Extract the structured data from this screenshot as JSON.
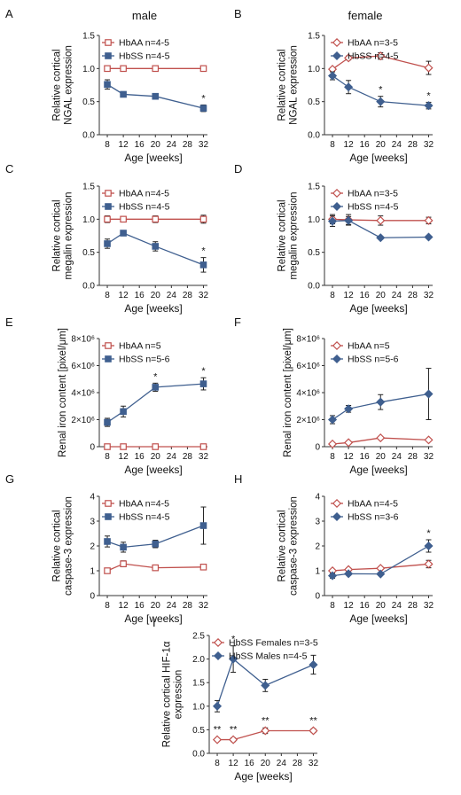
{
  "header": {
    "left": "male",
    "right": "female"
  },
  "chart_data": [
    {
      "id": "A",
      "type": "line",
      "sex": "male",
      "ylabel": [
        "Relative cortical",
        "NGAL expression"
      ],
      "xlabel": "Age [weeks]",
      "x": [
        8,
        12,
        20,
        32
      ],
      "xticks": [
        "8",
        "12",
        "16",
        "20",
        "24",
        "28",
        "32"
      ],
      "xlim": [
        6,
        33
      ],
      "ylim": [
        0,
        1.5
      ],
      "yticks": [
        "0.0",
        "0.5",
        "1.0",
        "1.5"
      ],
      "legend_position": "top-left",
      "series": [
        {
          "name": "HbAA n=4-5",
          "marker": "open-square",
          "color": "#c0504d",
          "values": [
            1.0,
            1.0,
            1.0,
            1.0
          ],
          "errors": [
            0,
            0,
            0,
            0
          ]
        },
        {
          "name": "HbSS n=4-5",
          "marker": "filled-square",
          "color": "#3f5f8f",
          "values": [
            0.76,
            0.61,
            0.58,
            0.4
          ],
          "errors": [
            0.07,
            0.02,
            0.03,
            0.05
          ]
        }
      ],
      "annotations": [
        {
          "x": 32,
          "text": "*"
        }
      ]
    },
    {
      "id": "B",
      "type": "line",
      "sex": "female",
      "ylabel": [
        "Relative cortical",
        "NGAL expression"
      ],
      "xlabel": "Age [weeks]",
      "x": [
        8,
        12,
        20,
        32
      ],
      "xticks": [
        "8",
        "12",
        "16",
        "20",
        "24",
        "28",
        "32"
      ],
      "xlim": [
        6,
        33
      ],
      "ylim": [
        0,
        1.5
      ],
      "yticks": [
        "0.0",
        "0.5",
        "1.0",
        "1.5"
      ],
      "legend_position": "top-right",
      "series": [
        {
          "name": "HbAA n=3-5",
          "marker": "open-diamond",
          "color": "#c0504d",
          "values": [
            0.99,
            1.16,
            1.19,
            1.01
          ],
          "errors": [
            0.02,
            0.03,
            0.05,
            0.1
          ]
        },
        {
          "name": "HbSS n=4-5",
          "marker": "filled-diamond",
          "color": "#3f5f8f",
          "values": [
            0.89,
            0.72,
            0.5,
            0.44
          ],
          "errors": [
            0.06,
            0.1,
            0.08,
            0.05
          ]
        }
      ],
      "annotations": [
        {
          "x": 20,
          "text": "*"
        },
        {
          "x": 32,
          "text": "*"
        }
      ]
    },
    {
      "id": "C",
      "type": "line",
      "sex": "male",
      "ylabel": [
        "Relative cortical",
        "megalin expression"
      ],
      "xlabel": "Age [weeks]",
      "x": [
        8,
        12,
        20,
        32
      ],
      "xticks": [
        "8",
        "12",
        "16",
        "20",
        "24",
        "28",
        "32"
      ],
      "xlim": [
        6,
        33
      ],
      "ylim": [
        0,
        1.5
      ],
      "yticks": [
        "0.0",
        "0.5",
        "1.0",
        "1.5"
      ],
      "legend_position": "top-left",
      "series": [
        {
          "name": "HbAA n=4-5",
          "marker": "open-square",
          "color": "#c0504d",
          "values": [
            1.0,
            1.0,
            1.0,
            1.0
          ],
          "errors": [
            0.05,
            0.04,
            0.05,
            0.06
          ]
        },
        {
          "name": "HbSS n=4-5",
          "marker": "filled-square",
          "color": "#3f5f8f",
          "values": [
            0.63,
            0.79,
            0.59,
            0.31
          ],
          "errors": [
            0.07,
            0.04,
            0.07,
            0.11
          ]
        }
      ],
      "annotations": [
        {
          "x": 32,
          "text": "*"
        }
      ]
    },
    {
      "id": "D",
      "type": "line",
      "sex": "female",
      "ylabel": [
        "Relative cortical",
        "megalin expression"
      ],
      "xlabel": "Age [weeks]",
      "x": [
        8,
        12,
        20,
        32
      ],
      "xticks": [
        "8",
        "12",
        "16",
        "20",
        "24",
        "28",
        "32"
      ],
      "xlim": [
        6,
        33
      ],
      "ylim": [
        0,
        1.5
      ],
      "yticks": [
        "0.0",
        "0.5",
        "1.0",
        "1.5"
      ],
      "legend_position": "top-right",
      "series": [
        {
          "name": "HbAA n=3-5",
          "marker": "open-diamond",
          "color": "#c0504d",
          "values": [
            1.0,
            0.99,
            0.98,
            0.98
          ],
          "errors": [
            0.07,
            0.08,
            0.07,
            0.05
          ]
        },
        {
          "name": "HbSS n=4-5",
          "marker": "filled-diamond",
          "color": "#3f5f8f",
          "values": [
            0.97,
            0.98,
            0.72,
            0.73
          ],
          "errors": [
            0.08,
            0.06,
            0.02,
            0.02
          ]
        }
      ],
      "annotations": []
    },
    {
      "id": "E",
      "type": "line",
      "sex": "male",
      "ylabel": [
        "Renal iron content [pixel/μm]"
      ],
      "xlabel": "Age [weeks]",
      "x": [
        8,
        12,
        20,
        32
      ],
      "xticks": [
        "8",
        "12",
        "16",
        "20",
        "24",
        "28",
        "32"
      ],
      "xlim": [
        6,
        33
      ],
      "ylim": [
        0,
        8000000
      ],
      "yticks": [
        "0",
        "2×10⁶",
        "4×10⁶",
        "6×10⁶",
        "8×10⁶"
      ],
      "legend_position": "top-left",
      "series": [
        {
          "name": "HbAA n=5",
          "marker": "open-square",
          "color": "#c0504d",
          "values": [
            0,
            0,
            0,
            0
          ],
          "errors": [
            0,
            0,
            0,
            0
          ]
        },
        {
          "name": "HbSS n=5-6",
          "marker": "filled-square",
          "color": "#3f5f8f",
          "values": [
            1800000,
            2600000,
            4400000,
            4650000
          ],
          "errors": [
            300000,
            400000,
            300000,
            450000
          ]
        }
      ],
      "annotations": [
        {
          "x": 20,
          "text": "*"
        },
        {
          "x": 32,
          "text": "*"
        }
      ]
    },
    {
      "id": "F",
      "type": "line",
      "sex": "female",
      "ylabel": [
        "Renal iron content [pixel/μm]"
      ],
      "xlabel": "Age [weeks]",
      "x": [
        8,
        12,
        20,
        32
      ],
      "xticks": [
        "8",
        "12",
        "16",
        "20",
        "24",
        "28",
        "32"
      ],
      "xlim": [
        6,
        33
      ],
      "ylim": [
        0,
        8000000
      ],
      "yticks": [
        "0",
        "2×10⁶",
        "4×10⁶",
        "6×10⁶",
        "8×10⁶"
      ],
      "legend_position": "top-right",
      "series": [
        {
          "name": "HbAA n=5",
          "marker": "open-diamond",
          "color": "#c0504d",
          "values": [
            200000,
            300000,
            650000,
            500000
          ],
          "errors": [
            0,
            0,
            0,
            0
          ]
        },
        {
          "name": "HbSS n=5-6",
          "marker": "filled-diamond",
          "color": "#3f5f8f",
          "values": [
            2000000,
            2800000,
            3300000,
            3900000
          ],
          "errors": [
            300000,
            250000,
            550000,
            1900000
          ]
        }
      ],
      "annotations": []
    },
    {
      "id": "G",
      "type": "line",
      "sex": "male",
      "ylabel": [
        "Relative cortical",
        "caspase-3 expression"
      ],
      "xlabel": "Age [weeks]",
      "x": [
        8,
        12,
        20,
        32
      ],
      "xticks": [
        "8",
        "12",
        "16",
        "20",
        "24",
        "28",
        "32"
      ],
      "xlim": [
        6,
        33
      ],
      "ylim": [
        0,
        4
      ],
      "yticks": [
        "0",
        "1",
        "2",
        "3",
        "4"
      ],
      "legend_position": "top-left",
      "series": [
        {
          "name": "HbAA n=4-5",
          "marker": "open-square",
          "color": "#c0504d",
          "values": [
            1.0,
            1.28,
            1.12,
            1.15
          ],
          "errors": [
            0,
            0.12,
            0.05,
            0.04
          ]
        },
        {
          "name": "HbSS n=4-5",
          "marker": "filled-square",
          "color": "#3f5f8f",
          "values": [
            2.18,
            1.95,
            2.08,
            2.82
          ],
          "errors": [
            0.22,
            0.2,
            0.15,
            0.75
          ]
        }
      ],
      "annotations": []
    },
    {
      "id": "H",
      "type": "line",
      "sex": "female",
      "ylabel": [
        "Relative cortical",
        "caspase-3 expression"
      ],
      "xlabel": "Age [weeks]",
      "x": [
        8,
        12,
        20,
        32
      ],
      "xticks": [
        "8",
        "12",
        "16",
        "20",
        "24",
        "28",
        "32"
      ],
      "xlim": [
        6,
        33
      ],
      "ylim": [
        0,
        4
      ],
      "yticks": [
        "0",
        "1",
        "2",
        "3",
        "4"
      ],
      "legend_position": "top-right",
      "series": [
        {
          "name": "HbAA n=4-5",
          "marker": "open-diamond",
          "color": "#c0504d",
          "values": [
            1.0,
            1.05,
            1.1,
            1.27
          ],
          "errors": [
            0.05,
            0.06,
            0.05,
            0.15
          ]
        },
        {
          "name": "HbSS n=3-6",
          "marker": "filled-diamond",
          "color": "#3f5f8f",
          "values": [
            0.8,
            0.88,
            0.87,
            2.0
          ],
          "errors": [
            0.1,
            0.05,
            0.05,
            0.25
          ]
        }
      ],
      "annotations": [
        {
          "x": 32,
          "text": "*"
        }
      ]
    },
    {
      "id": "I",
      "type": "line",
      "sex": "",
      "ylabel": [
        "Relative cortical HIF-1α",
        "expression"
      ],
      "xlabel": "Age [weeks]",
      "x": [
        8,
        12,
        20,
        32
      ],
      "xticks": [
        "8",
        "12",
        "16",
        "20",
        "24",
        "28",
        "32"
      ],
      "xlim": [
        6,
        33
      ],
      "ylim": [
        0,
        2.5
      ],
      "yticks": [
        "0.0",
        "0.5",
        "1.0",
        "1.5",
        "2.0",
        "2.5"
      ],
      "legend_position": "top-left",
      "series": [
        {
          "name": "HbSS Females n=3-5",
          "marker": "open-diamond",
          "color": "#c0504d",
          "values": [
            0.29,
            0.29,
            0.48,
            0.48
          ],
          "errors": [
            0,
            0.04,
            0.06,
            0.04
          ]
        },
        {
          "name": "HbSS Males n=4-5",
          "marker": "filled-diamond",
          "color": "#3f5f8f",
          "values": [
            1.0,
            2.0,
            1.44,
            1.88
          ],
          "errors": [
            0.12,
            0.28,
            0.13,
            0.2
          ]
        }
      ],
      "annotations": [
        {
          "x": 12,
          "text": "*",
          "series": 1
        },
        {
          "x": 8,
          "text": "**",
          "series": 0
        },
        {
          "x": 12,
          "text": "**",
          "series": 0
        },
        {
          "x": 20,
          "text": "**",
          "series": 0
        },
        {
          "x": 32,
          "text": "**",
          "series": 0
        }
      ]
    }
  ]
}
